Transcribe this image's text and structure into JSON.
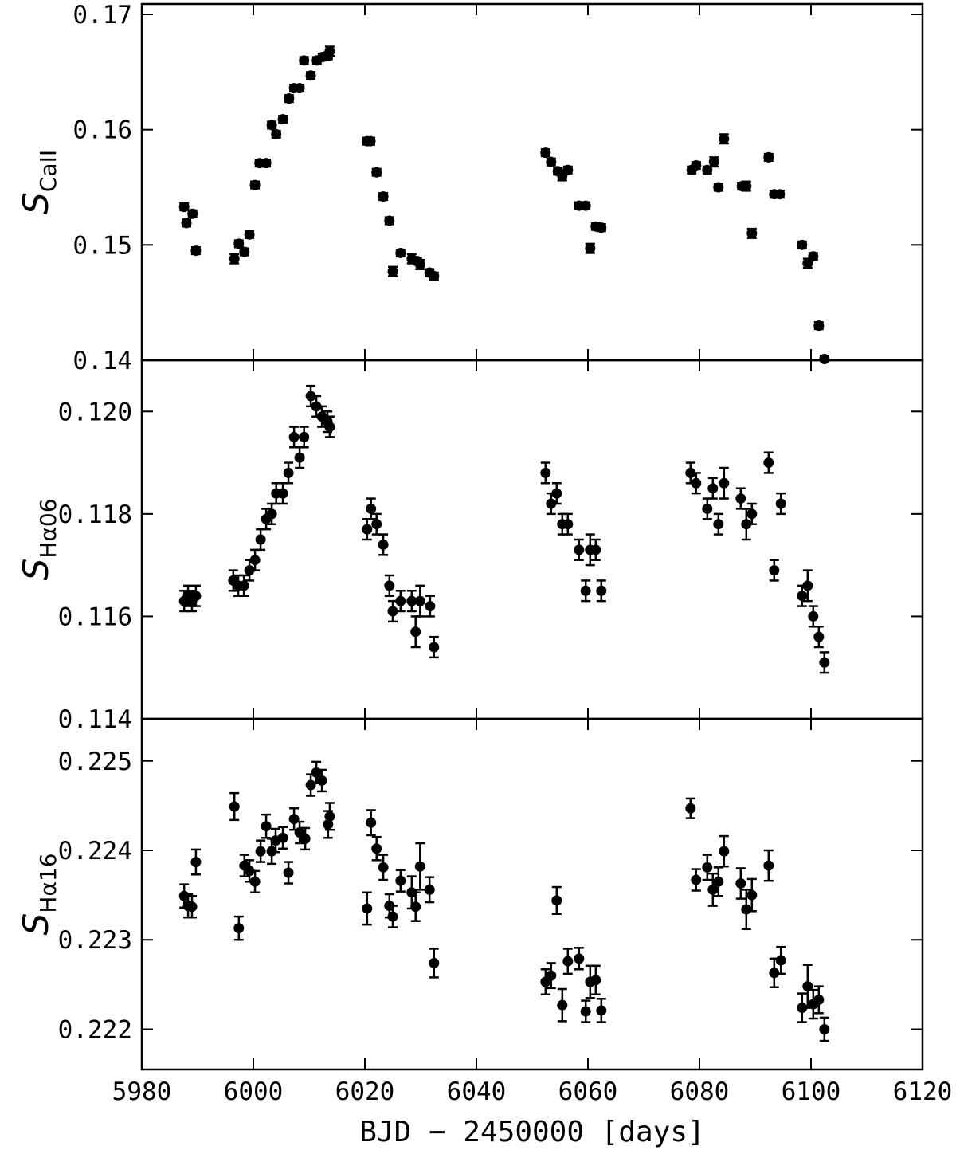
{
  "chart_data": [
    {
      "type": "scatter",
      "ylabel": "S",
      "ylabel_sub": "CaII",
      "xlim": [
        5980,
        6120
      ],
      "ylim": [
        0.14,
        0.1709
      ],
      "yticks": [
        0.14,
        0.15,
        0.16,
        0.17
      ],
      "x": [
        5987.6,
        5988.0,
        5989.1,
        5989.7,
        5996.6,
        5997.4,
        5998.4,
        5999.3,
        6000.3,
        6001.1,
        6002.3,
        6003.3,
        6004.1,
        6005.3,
        6006.4,
        6007.3,
        6008.3,
        6009.1,
        6010.3,
        6011.4,
        6012.4,
        6013.4,
        6013.7,
        6020.4,
        6021.0,
        6022.1,
        6023.3,
        6024.4,
        6025.0,
        6026.4,
        6028.4,
        6029.4,
        6029.9,
        6031.6,
        6032.4,
        6052.4,
        6053.4,
        6054.6,
        6055.4,
        6056.4,
        6058.4,
        6059.6,
        6060.4,
        6061.4,
        6062.4,
        6078.6,
        6079.4,
        6081.4,
        6082.6,
        6083.4,
        6084.4,
        6087.6,
        6088.4,
        6089.4,
        6092.4,
        6093.4,
        6094.4,
        6098.4,
        6099.4,
        6100.4,
        6101.4,
        6102.4
      ],
      "values": [
        0.1533,
        0.1519,
        0.1527,
        0.1495,
        0.1488,
        0.1501,
        0.1494,
        0.1509,
        0.1552,
        0.1571,
        0.1571,
        0.1604,
        0.1596,
        0.1609,
        0.1627,
        0.1636,
        0.1636,
        0.166,
        0.1647,
        0.166,
        0.1663,
        0.1664,
        0.1668,
        0.159,
        0.159,
        0.1563,
        0.1542,
        0.1521,
        0.1477,
        0.1493,
        0.1488,
        0.1486,
        0.1483,
        0.1476,
        0.1473,
        0.158,
        0.1572,
        0.1564,
        0.156,
        0.1565,
        0.1534,
        0.1534,
        0.1497,
        0.1516,
        0.1515,
        0.1565,
        0.1569,
        0.1565,
        0.1572,
        0.155,
        0.1592,
        0.1551,
        0.1551,
        0.151,
        0.1576,
        0.1544,
        0.1544,
        0.15,
        0.1484,
        0.149,
        0.143,
        0.1401
      ],
      "errors": [
        0.0003,
        0.0003,
        0.0003,
        0.0003,
        0.0004,
        0.0003,
        0.0003,
        0.0003,
        0.0003,
        0.0003,
        0.0003,
        0.0003,
        0.0003,
        0.0003,
        0.0003,
        0.0003,
        0.0003,
        0.0003,
        0.0003,
        0.0003,
        0.0003,
        0.0003,
        0.0004,
        0.0003,
        0.0003,
        0.0003,
        0.0003,
        0.0003,
        0.0004,
        0.0003,
        0.0004,
        0.0003,
        0.0004,
        0.0003,
        0.0003,
        0.0003,
        0.0003,
        0.0003,
        0.0004,
        0.0003,
        0.0003,
        0.0003,
        0.0004,
        0.0003,
        0.0003,
        0.0003,
        0.0003,
        0.0003,
        0.0004,
        0.0003,
        0.0004,
        0.0003,
        0.0004,
        0.0004,
        0.0003,
        0.0003,
        0.0003,
        0.0003,
        0.0004,
        0.0003,
        0.0003,
        0.0003
      ]
    },
    {
      "type": "scatter",
      "ylabel": "S",
      "ylabel_sub": "Hα06",
      "xlim": [
        5980,
        6120
      ],
      "ylim": [
        0.114,
        0.121
      ],
      "yticks": [
        0.114,
        0.116,
        0.118,
        {
          "value": 0.12,
          "label": "0.120"
        }
      ],
      "x": [
        5987.6,
        5988.3,
        5989.0,
        5989.7,
        5996.4,
        5997.3,
        5998.3,
        5999.3,
        6000.3,
        6001.3,
        6002.3,
        6003.3,
        6004.1,
        6005.3,
        6006.3,
        6007.3,
        6008.3,
        6009.1,
        6010.3,
        6011.3,
        6012.3,
        6013.3,
        6013.7,
        6020.4,
        6021.1,
        6022.1,
        6023.3,
        6024.4,
        6025.0,
        6026.4,
        6028.4,
        6029.1,
        6029.9,
        6031.7,
        6032.4,
        6052.4,
        6053.4,
        6054.4,
        6055.4,
        6056.4,
        6058.4,
        6059.6,
        6060.4,
        6061.4,
        6062.4,
        6078.4,
        6079.4,
        6081.4,
        6082.4,
        6083.4,
        6084.4,
        6087.4,
        6088.4,
        6089.4,
        6092.4,
        6093.4,
        6094.6,
        6098.4,
        6099.4,
        6100.4,
        6101.4,
        6102.4
      ],
      "values": [
        0.1163,
        0.1164,
        0.1163,
        0.1164,
        0.1167,
        0.1166,
        0.1166,
        0.1169,
        0.1171,
        0.1175,
        0.1179,
        0.118,
        0.1184,
        0.1184,
        0.1188,
        0.1195,
        0.1191,
        0.1195,
        0.1203,
        0.1201,
        0.1199,
        0.1198,
        0.1197,
        0.1177,
        0.1181,
        0.1178,
        0.1174,
        0.1166,
        0.1161,
        0.1163,
        0.1163,
        0.1157,
        0.1163,
        0.1162,
        0.1154,
        0.1188,
        0.1182,
        0.1184,
        0.1178,
        0.1178,
        0.1173,
        0.1165,
        0.1173,
        0.1173,
        0.1165,
        0.1188,
        0.1186,
        0.1181,
        0.1185,
        0.1178,
        0.1186,
        0.1183,
        0.1178,
        0.118,
        0.119,
        0.1169,
        0.1182,
        0.1164,
        0.1166,
        0.116,
        0.1156,
        0.1151
      ],
      "errors": [
        0.0002,
        0.0002,
        0.0002,
        0.0002,
        0.0002,
        0.0002,
        0.0002,
        0.0002,
        0.0002,
        0.0002,
        0.0002,
        0.0002,
        0.0002,
        0.0002,
        0.0002,
        0.0002,
        0.0002,
        0.0002,
        0.0002,
        0.0002,
        0.0002,
        0.0002,
        0.0002,
        0.0002,
        0.0002,
        0.0002,
        0.0002,
        0.0002,
        0.0002,
        0.0002,
        0.0002,
        0.0003,
        0.0003,
        0.0002,
        0.0002,
        0.0002,
        0.0002,
        0.0002,
        0.0002,
        0.0002,
        0.0002,
        0.0002,
        0.0003,
        0.0002,
        0.0002,
        0.0002,
        0.0002,
        0.0002,
        0.0002,
        0.0002,
        0.0003,
        0.0002,
        0.0003,
        0.0002,
        0.0002,
        0.0002,
        0.0002,
        0.0002,
        0.0003,
        0.0002,
        0.0002,
        0.0002
      ]
    },
    {
      "type": "scatter",
      "ylabel": "S",
      "ylabel_sub": "Hα16",
      "xlabel": "BJD − 2450000 [days]",
      "xlim": [
        5980,
        6120
      ],
      "xticks": [
        5980,
        6000,
        6020,
        6040,
        6060,
        6080,
        6100,
        6120
      ],
      "ylim": [
        0.22155,
        0.22547
      ],
      "yticks": [
        0.222,
        0.223,
        0.224,
        0.225
      ],
      "x": [
        5987.6,
        5988.3,
        5989.0,
        5989.7,
        5996.6,
        5997.4,
        5998.4,
        5999.3,
        6000.3,
        6001.3,
        6002.3,
        6003.3,
        6004.0,
        6005.3,
        6006.3,
        6007.3,
        6008.3,
        6009.3,
        6010.3,
        6011.3,
        6012.3,
        6013.4,
        6013.7,
        6020.4,
        6021.1,
        6022.1,
        6023.3,
        6024.4,
        6025.0,
        6026.4,
        6028.4,
        6029.1,
        6029.9,
        6031.6,
        6032.4,
        6052.4,
        6053.4,
        6054.4,
        6055.4,
        6056.4,
        6058.4,
        6059.6,
        6060.4,
        6061.4,
        6062.4,
        6078.4,
        6079.4,
        6081.4,
        6082.4,
        6083.4,
        6084.4,
        6087.4,
        6088.4,
        6089.4,
        6092.4,
        6093.4,
        6094.6,
        6098.4,
        6099.4,
        6100.4,
        6101.4,
        6102.4
      ],
      "values": [
        0.22349,
        0.22338,
        0.22337,
        0.22387,
        0.22449,
        0.22313,
        0.22383,
        0.22377,
        0.22365,
        0.22399,
        0.22427,
        0.22399,
        0.22411,
        0.22414,
        0.22375,
        0.22435,
        0.2242,
        0.22413,
        0.22473,
        0.22487,
        0.22478,
        0.22429,
        0.22438,
        0.22335,
        0.22431,
        0.22402,
        0.22381,
        0.22338,
        0.22326,
        0.22366,
        0.22353,
        0.22337,
        0.22382,
        0.22356,
        0.22274,
        0.22253,
        0.2226,
        0.22344,
        0.22227,
        0.22276,
        0.22279,
        0.2222,
        0.22253,
        0.22255,
        0.22221,
        0.22447,
        0.22367,
        0.22381,
        0.22356,
        0.22365,
        0.22399,
        0.22363,
        0.22334,
        0.2235,
        0.22383,
        0.22263,
        0.22277,
        0.22224,
        0.22248,
        0.22228,
        0.22233,
        0.222
      ],
      "errors": [
        0.00013,
        0.00013,
        0.00012,
        0.00014,
        0.00015,
        0.00013,
        0.00012,
        0.00012,
        0.00012,
        0.00012,
        0.00013,
        0.00014,
        0.00013,
        0.00012,
        0.00012,
        0.00012,
        0.00012,
        0.00012,
        0.00012,
        0.00012,
        0.00012,
        0.00015,
        0.00015,
        0.00018,
        0.00014,
        0.00013,
        0.00014,
        0.00013,
        0.00012,
        0.00012,
        0.00018,
        0.00016,
        0.00026,
        0.00014,
        0.00016,
        0.00014,
        0.00014,
        0.00015,
        0.00018,
        0.00014,
        0.00012,
        0.00012,
        0.00018,
        0.00016,
        0.00013,
        0.00011,
        0.00012,
        0.00014,
        0.00018,
        0.00016,
        0.00017,
        0.00017,
        0.00022,
        0.00018,
        0.00017,
        0.00016,
        0.00015,
        0.00016,
        0.00024,
        0.00016,
        0.00015,
        0.00013
      ]
    }
  ]
}
